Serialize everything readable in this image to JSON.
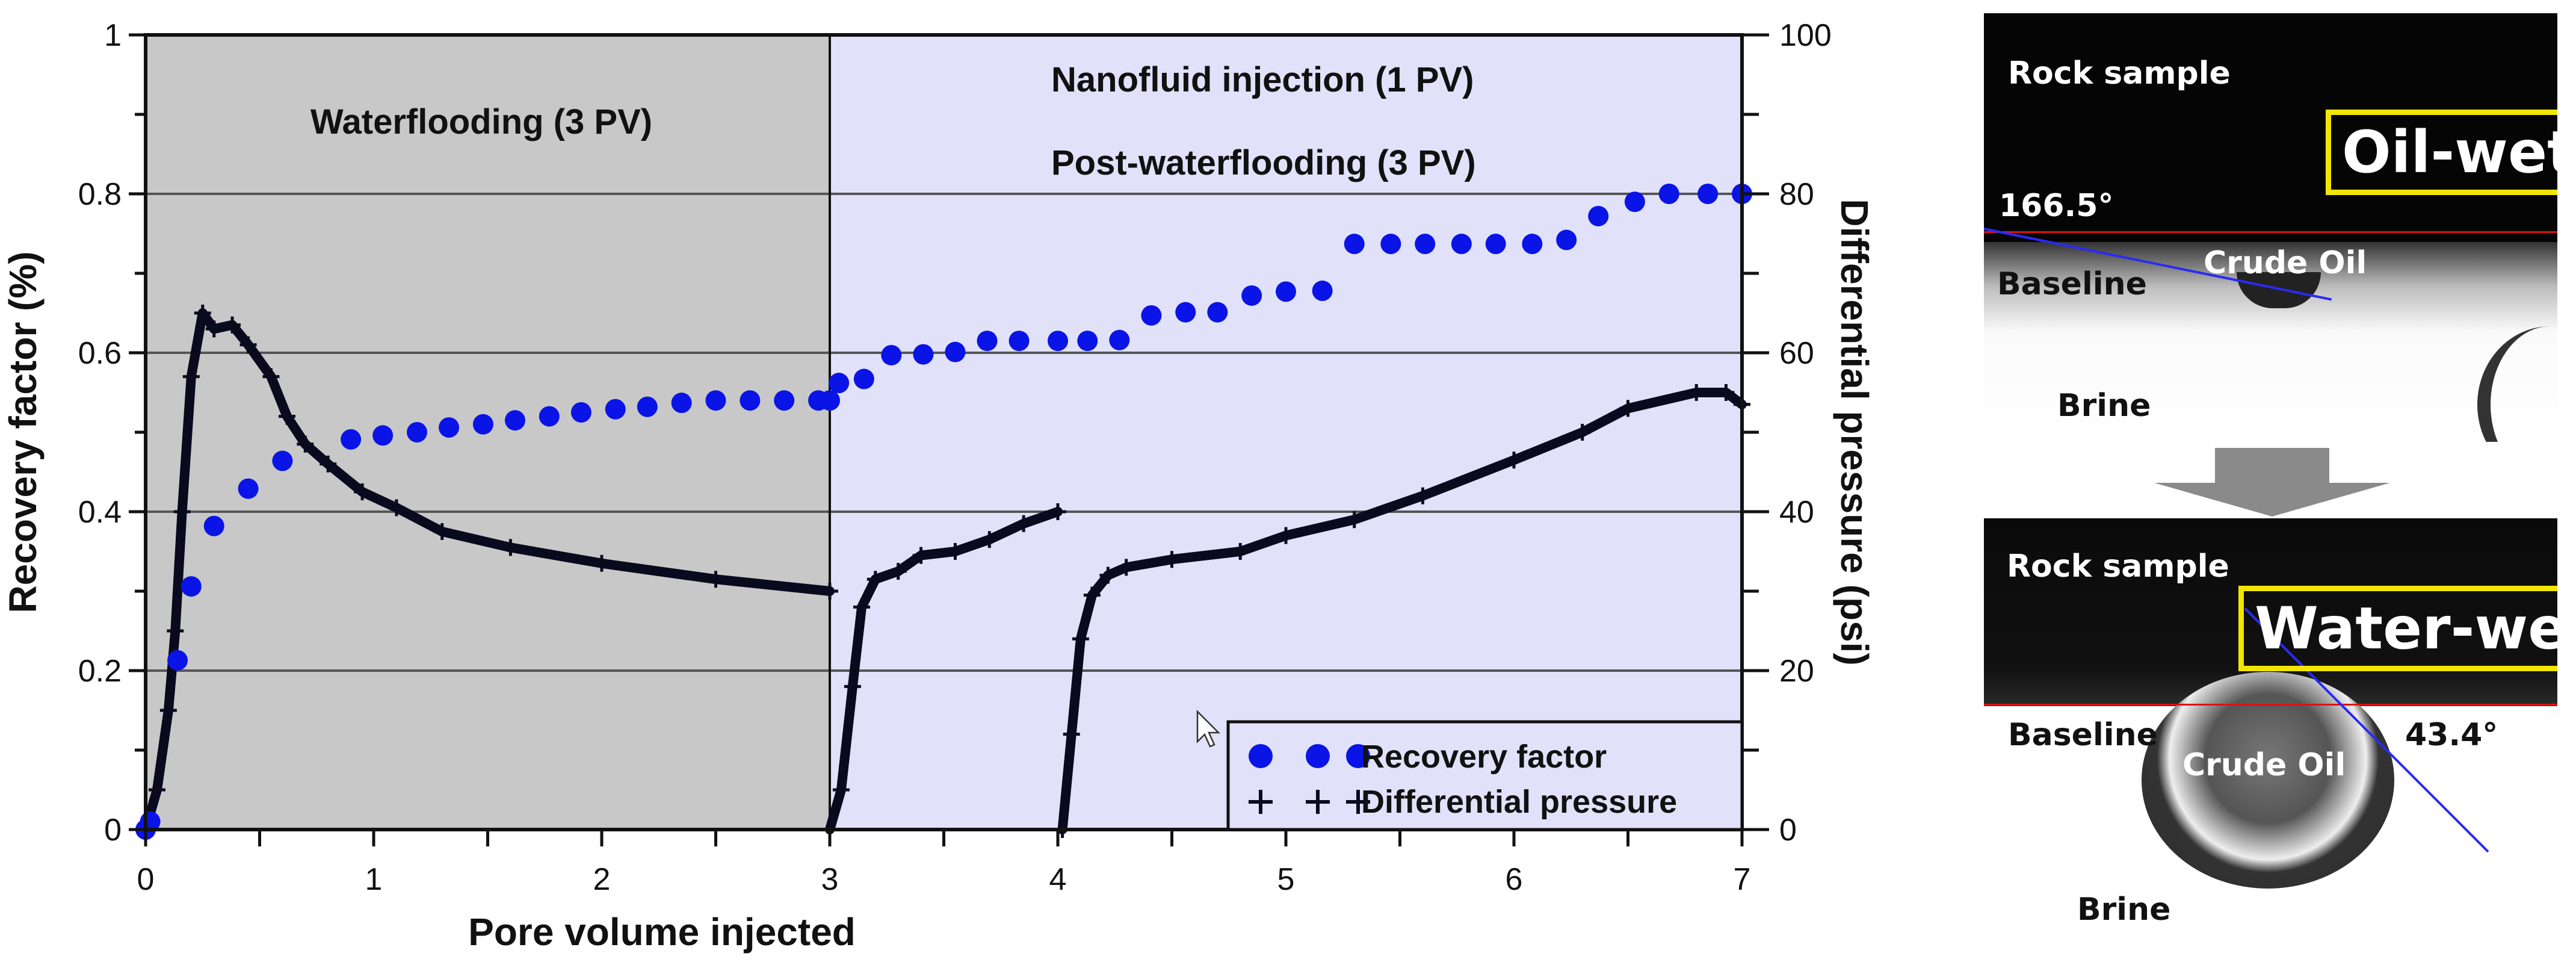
{
  "chart_data": {
    "type": "scatter",
    "xlabel": "Pore volume injected",
    "ylabel": "Recovery factor (%)",
    "y2label": "Differential pressure (psi)",
    "xlim": [
      0,
      7
    ],
    "ylim": [
      0,
      1
    ],
    "y2lim": [
      0,
      100
    ],
    "xticks": [
      "0",
      "1",
      "2",
      "3",
      "4",
      "5",
      "6",
      "7"
    ],
    "yticks": [
      "0",
      "0.2",
      "0.4",
      "0.6",
      "0.8",
      "1"
    ],
    "y2ticks": [
      "0",
      "20",
      "40",
      "60",
      "80",
      "100"
    ],
    "grid": true,
    "legend_placement": "bottom-right",
    "regions": [
      {
        "label": "Waterflooding (3 PV)",
        "x": [
          0,
          3
        ],
        "color": "#c8c8c8"
      },
      {
        "label": "Nanofluid injection (1 PV)",
        "label2": "Post-waterflooding (3 PV)",
        "x": [
          3,
          7
        ],
        "color": "#e1e1fa"
      }
    ],
    "series": [
      {
        "name": "Recovery factor",
        "axis": "left",
        "marker": "circle",
        "color": "#0a14e6",
        "points": [
          [
            0,
            0
          ],
          [
            0.02,
            0.01
          ],
          [
            0.14,
            0.213
          ],
          [
            0.2,
            0.306
          ],
          [
            0.3,
            0.382
          ],
          [
            0.45,
            0.429
          ],
          [
            0.6,
            0.464
          ],
          [
            0.9,
            0.491
          ],
          [
            1.04,
            0.496
          ],
          [
            1.19,
            0.5
          ],
          [
            1.33,
            0.506
          ],
          [
            1.48,
            0.51
          ],
          [
            1.62,
            0.515
          ],
          [
            1.77,
            0.52
          ],
          [
            1.91,
            0.525
          ],
          [
            2.06,
            0.529
          ],
          [
            2.2,
            0.532
          ],
          [
            2.35,
            0.537
          ],
          [
            2.5,
            0.54
          ],
          [
            2.65,
            0.54
          ],
          [
            2.8,
            0.54
          ],
          [
            2.95,
            0.54
          ],
          [
            3.0,
            0.54
          ],
          [
            3.04,
            0.562
          ],
          [
            3.15,
            0.567
          ],
          [
            3.27,
            0.597
          ],
          [
            3.41,
            0.598
          ],
          [
            3.55,
            0.601
          ],
          [
            3.69,
            0.615
          ],
          [
            3.83,
            0.615
          ],
          [
            4.0,
            0.615
          ],
          [
            4.13,
            0.615
          ],
          [
            4.27,
            0.616
          ],
          [
            4.41,
            0.647
          ],
          [
            4.56,
            0.651
          ],
          [
            4.7,
            0.651
          ],
          [
            4.85,
            0.672
          ],
          [
            5.0,
            0.677
          ],
          [
            5.16,
            0.678
          ],
          [
            5.3,
            0.737
          ],
          [
            5.46,
            0.737
          ],
          [
            5.61,
            0.737
          ],
          [
            5.77,
            0.737
          ],
          [
            5.92,
            0.737
          ],
          [
            6.08,
            0.737
          ],
          [
            6.23,
            0.742
          ],
          [
            6.37,
            0.772
          ],
          [
            6.53,
            0.79
          ],
          [
            6.68,
            0.8
          ],
          [
            6.85,
            0.8
          ],
          [
            7.0,
            0.8
          ]
        ]
      },
      {
        "name": "Differential pressure",
        "axis": "right",
        "marker": "plus",
        "color": "#0a0a1e",
        "segments": [
          [
            [
              0,
              0
            ],
            [
              0.05,
              5
            ],
            [
              0.1,
              15
            ],
            [
              0.13,
              25
            ],
            [
              0.16,
              40
            ],
            [
              0.2,
              57
            ],
            [
              0.25,
              65
            ],
            [
              0.3,
              63
            ],
            [
              0.38,
              63.5
            ],
            [
              0.45,
              61
            ],
            [
              0.55,
              57
            ],
            [
              0.62,
              52
            ],
            [
              0.7,
              48.5
            ],
            [
              0.8,
              46
            ],
            [
              0.95,
              42.5
            ],
            [
              1.1,
              40.5
            ],
            [
              1.3,
              37.5
            ],
            [
              1.6,
              35.5
            ],
            [
              2.0,
              33.5
            ],
            [
              2.5,
              31.5
            ],
            [
              3.0,
              30
            ]
          ],
          [
            [
              3.0,
              0
            ],
            [
              3.05,
              5
            ],
            [
              3.1,
              18
            ],
            [
              3.14,
              28
            ],
            [
              3.2,
              31.5
            ],
            [
              3.3,
              32.5
            ],
            [
              3.4,
              34.5
            ],
            [
              3.55,
              35
            ],
            [
              3.7,
              36.5
            ],
            [
              3.85,
              38.5
            ],
            [
              4.0,
              40
            ]
          ],
          [
            [
              4.02,
              0
            ],
            [
              4.06,
              12
            ],
            [
              4.1,
              24
            ],
            [
              4.15,
              29.5
            ],
            [
              4.22,
              32
            ],
            [
              4.3,
              33
            ],
            [
              4.5,
              34
            ],
            [
              4.8,
              35
            ],
            [
              5.0,
              37
            ],
            [
              5.3,
              39
            ],
            [
              5.6,
              42
            ],
            [
              6.0,
              46.5
            ],
            [
              6.3,
              50
            ],
            [
              6.5,
              53
            ],
            [
              6.8,
              55
            ],
            [
              6.93,
              55
            ],
            [
              7.0,
              53.5
            ]
          ]
        ]
      }
    ]
  },
  "contact_angle": {
    "top": {
      "region_label": "Rock sample",
      "state": "Oil-wet",
      "angle": "166.5°",
      "baseline": "Baseline",
      "drop": "Crude Oil",
      "medium": "Brine"
    },
    "bottom": {
      "region_label": "Rock sample",
      "state": "Water-wet",
      "angle": "43.4°",
      "baseline": "Baseline",
      "drop": "Crude Oil",
      "medium": "Brine"
    }
  }
}
